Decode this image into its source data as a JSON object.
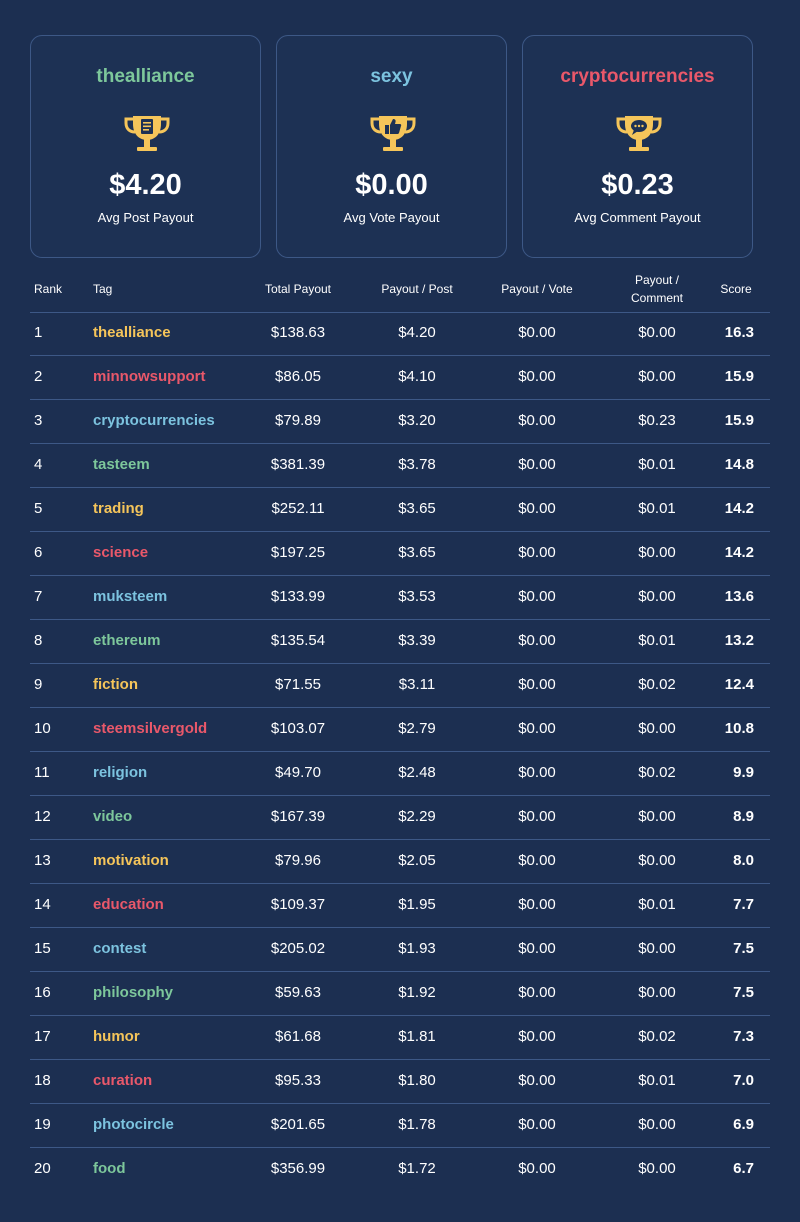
{
  "colors": {
    "background": "#1c2f51",
    "yellow": "#f5c55a",
    "red": "#e9586a",
    "blue": "#7cc3df",
    "green": "#7dc79b",
    "trophy": "#f5c55a"
  },
  "cards": [
    {
      "tag": "thealliance",
      "tag_color": "green",
      "icon": "trophy-document-icon",
      "value": "$4.20",
      "label": "Avg Post Payout"
    },
    {
      "tag": "sexy",
      "tag_color": "blue",
      "icon": "trophy-thumbs-up-icon",
      "value": "$0.00",
      "label": "Avg Vote Payout"
    },
    {
      "tag": "cryptocurrencies",
      "tag_color": "red",
      "icon": "trophy-comment-icon",
      "value": "$0.23",
      "label": "Avg Comment Payout"
    }
  ],
  "table": {
    "headers": {
      "rank": "Rank",
      "tag": "Tag",
      "total": "Total Payout",
      "post": "Payout / Post",
      "vote": "Payout / Vote",
      "comment_line1": "Payout /",
      "comment_line2": "Comment",
      "score": "Score"
    },
    "rows": [
      {
        "rank": "1",
        "tag": "thealliance",
        "color": "yellow",
        "total": "$138.63",
        "post": "$4.20",
        "vote": "$0.00",
        "comment": "$0.00",
        "score": "16.3"
      },
      {
        "rank": "2",
        "tag": "minnowsupport",
        "color": "red",
        "total": "$86.05",
        "post": "$4.10",
        "vote": "$0.00",
        "comment": "$0.00",
        "score": "15.9"
      },
      {
        "rank": "3",
        "tag": "cryptocurrencies",
        "color": "blue",
        "total": "$79.89",
        "post": "$3.20",
        "vote": "$0.00",
        "comment": "$0.23",
        "score": "15.9"
      },
      {
        "rank": "4",
        "tag": "tasteem",
        "color": "green",
        "total": "$381.39",
        "post": "$3.78",
        "vote": "$0.00",
        "comment": "$0.01",
        "score": "14.8"
      },
      {
        "rank": "5",
        "tag": "trading",
        "color": "yellow",
        "total": "$252.11",
        "post": "$3.65",
        "vote": "$0.00",
        "comment": "$0.01",
        "score": "14.2"
      },
      {
        "rank": "6",
        "tag": "science",
        "color": "red",
        "total": "$197.25",
        "post": "$3.65",
        "vote": "$0.00",
        "comment": "$0.00",
        "score": "14.2"
      },
      {
        "rank": "7",
        "tag": "muksteem",
        "color": "blue",
        "total": "$133.99",
        "post": "$3.53",
        "vote": "$0.00",
        "comment": "$0.00",
        "score": "13.6"
      },
      {
        "rank": "8",
        "tag": "ethereum",
        "color": "green",
        "total": "$135.54",
        "post": "$3.39",
        "vote": "$0.00",
        "comment": "$0.01",
        "score": "13.2"
      },
      {
        "rank": "9",
        "tag": "fiction",
        "color": "yellow",
        "total": "$71.55",
        "post": "$3.11",
        "vote": "$0.00",
        "comment": "$0.02",
        "score": "12.4"
      },
      {
        "rank": "10",
        "tag": "steemsilvergold",
        "color": "red",
        "total": "$103.07",
        "post": "$2.79",
        "vote": "$0.00",
        "comment": "$0.00",
        "score": "10.8"
      },
      {
        "rank": "11",
        "tag": "religion",
        "color": "blue",
        "total": "$49.70",
        "post": "$2.48",
        "vote": "$0.00",
        "comment": "$0.02",
        "score": "9.9"
      },
      {
        "rank": "12",
        "tag": "video",
        "color": "green",
        "total": "$167.39",
        "post": "$2.29",
        "vote": "$0.00",
        "comment": "$0.00",
        "score": "8.9"
      },
      {
        "rank": "13",
        "tag": "motivation",
        "color": "yellow",
        "total": "$79.96",
        "post": "$2.05",
        "vote": "$0.00",
        "comment": "$0.00",
        "score": "8.0"
      },
      {
        "rank": "14",
        "tag": "education",
        "color": "red",
        "total": "$109.37",
        "post": "$1.95",
        "vote": "$0.00",
        "comment": "$0.01",
        "score": "7.7"
      },
      {
        "rank": "15",
        "tag": "contest",
        "color": "blue",
        "total": "$205.02",
        "post": "$1.93",
        "vote": "$0.00",
        "comment": "$0.00",
        "score": "7.5"
      },
      {
        "rank": "16",
        "tag": "philosophy",
        "color": "green",
        "total": "$59.63",
        "post": "$1.92",
        "vote": "$0.00",
        "comment": "$0.00",
        "score": "7.5"
      },
      {
        "rank": "17",
        "tag": "humor",
        "color": "yellow",
        "total": "$61.68",
        "post": "$1.81",
        "vote": "$0.00",
        "comment": "$0.02",
        "score": "7.3"
      },
      {
        "rank": "18",
        "tag": "curation",
        "color": "red",
        "total": "$95.33",
        "post": "$1.80",
        "vote": "$0.00",
        "comment": "$0.01",
        "score": "7.0"
      },
      {
        "rank": "19",
        "tag": "photocircle",
        "color": "blue",
        "total": "$201.65",
        "post": "$1.78",
        "vote": "$0.00",
        "comment": "$0.00",
        "score": "6.9"
      },
      {
        "rank": "20",
        "tag": "food",
        "color": "green",
        "total": "$356.99",
        "post": "$1.72",
        "vote": "$0.00",
        "comment": "$0.00",
        "score": "6.7"
      }
    ]
  }
}
